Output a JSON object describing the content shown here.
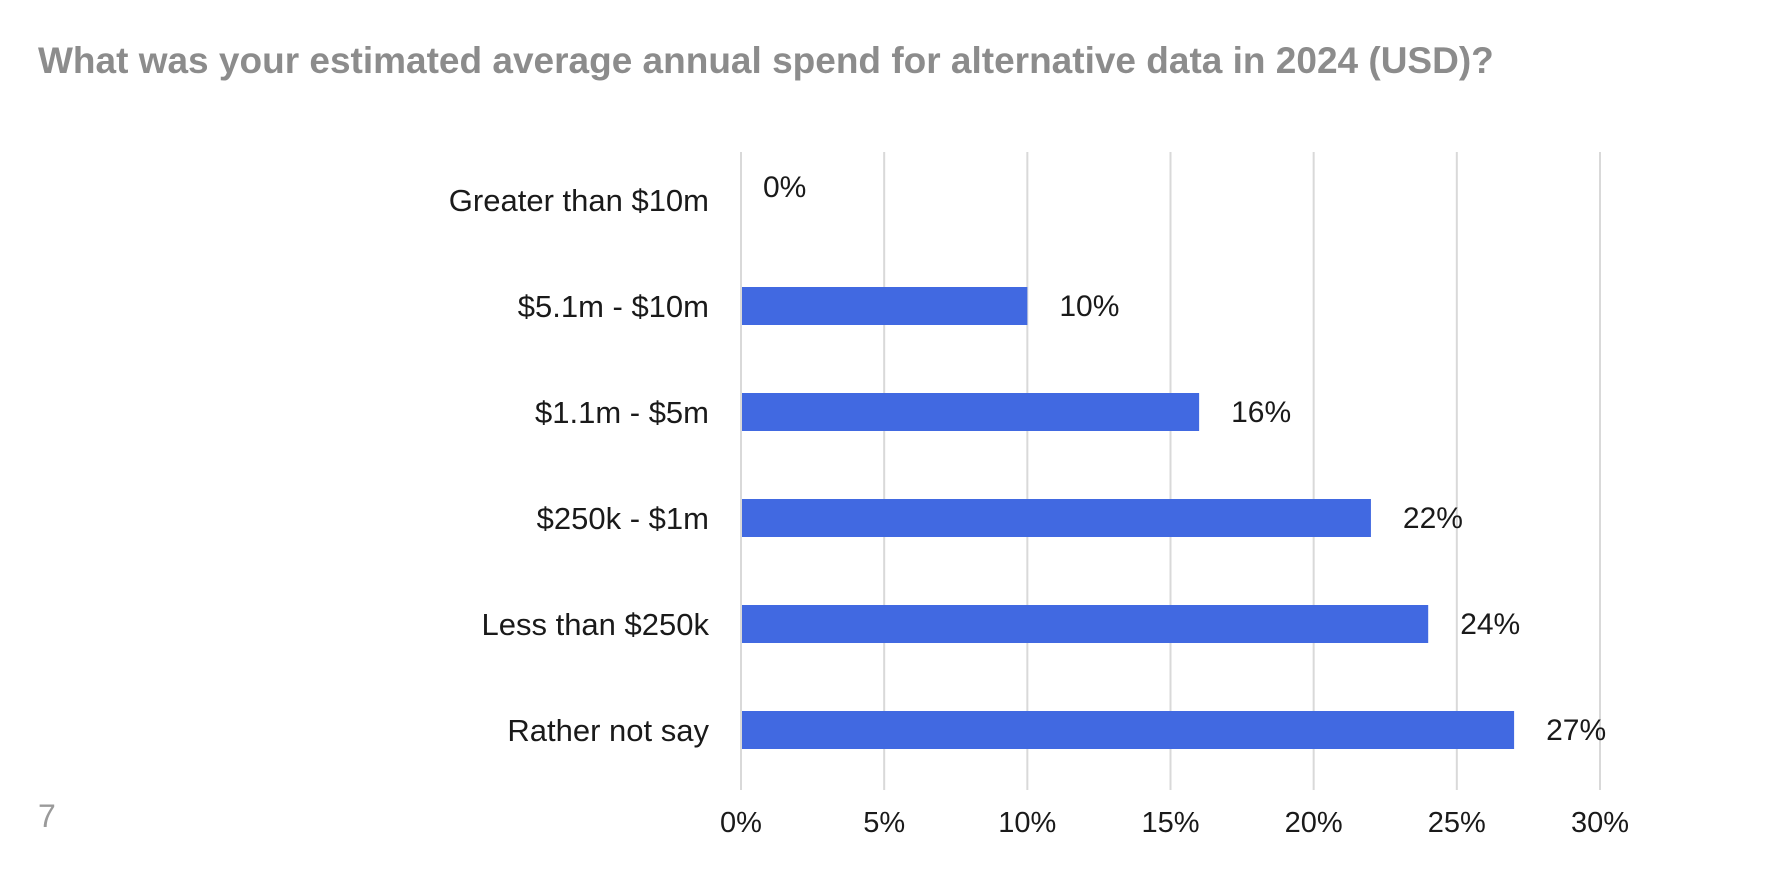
{
  "slide": {
    "title": "What was your estimated average annual spend for alternative data in 2024 (USD)?",
    "page_number": "7"
  },
  "chart_data": {
    "type": "bar",
    "orientation": "horizontal",
    "title": "What was your estimated average annual spend for alternative data in 2024 (USD)?",
    "categories": [
      "Greater than $10m",
      "$5.1m - $10m",
      "$1.1m - $5m",
      "$250k - $1m",
      "Less than $250k",
      "Rather not say"
    ],
    "values": [
      0,
      10,
      16,
      22,
      24,
      27
    ],
    "data_labels": [
      "0%",
      "10%",
      "16%",
      "22%",
      "24%",
      "27%"
    ],
    "xlim": [
      0,
      30
    ],
    "x_ticks": [
      0,
      5,
      10,
      15,
      20,
      25,
      30
    ],
    "x_tick_labels": [
      "0%",
      "5%",
      "10%",
      "15%",
      "20%",
      "25%",
      "30%"
    ],
    "xlabel": "",
    "ylabel": "",
    "grid": "vertical",
    "legend": "none",
    "bar_color": "#4169e1",
    "grid_color": "#d9d9d9",
    "text_color": "#1a1a1a"
  }
}
